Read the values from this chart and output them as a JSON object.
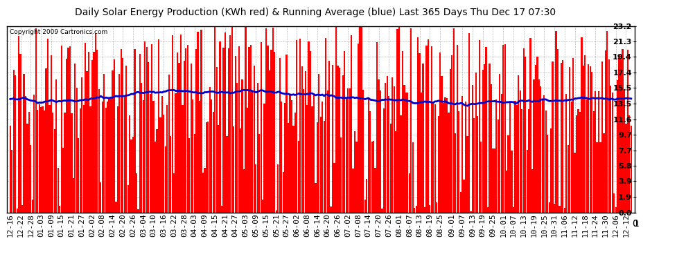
{
  "title": "Daily Solar Energy Production (KWh red) & Running Average (blue) Last 365 Days Thu Dec 17 07:30",
  "copyright": "Copyright 2009 Cartronics.com",
  "bar_color": "#ff0000",
  "avg_color": "#0000cc",
  "background_color": "#ffffff",
  "plot_bg_color": "#ffffff",
  "grid_color": "#aaaaaa",
  "ylim": [
    0.0,
    23.2
  ],
  "yticks": [
    0.0,
    1.9,
    3.9,
    5.8,
    7.7,
    9.7,
    11.6,
    13.5,
    15.5,
    17.4,
    19.4,
    21.3,
    23.2
  ],
  "xlabel_rotation": 90,
  "title_fontsize": 10,
  "tick_fontsize": 8,
  "avg_linewidth": 2.0,
  "num_days": 365,
  "x_tick_labels": [
    "12-16",
    "12-22",
    "12-28",
    "01-03",
    "01-09",
    "01-15",
    "01-21",
    "01-27",
    "02-02",
    "02-08",
    "02-14",
    "02-20",
    "02-26",
    "03-04",
    "03-10",
    "03-16",
    "03-22",
    "03-28",
    "04-03",
    "04-09",
    "04-15",
    "04-21",
    "04-27",
    "05-03",
    "05-09",
    "05-15",
    "05-21",
    "05-27",
    "06-02",
    "06-08",
    "06-14",
    "06-20",
    "06-26",
    "07-02",
    "07-08",
    "07-14",
    "07-20",
    "07-26",
    "08-01",
    "08-07",
    "08-13",
    "08-19",
    "08-25",
    "09-01",
    "09-07",
    "09-13",
    "09-19",
    "09-25",
    "10-01",
    "10-07",
    "10-13",
    "10-19",
    "10-25",
    "10-31",
    "11-06",
    "11-12",
    "11-18",
    "11-24",
    "11-30",
    "12-06",
    "12-12"
  ],
  "x_tick_positions": [
    0,
    6,
    12,
    18,
    24,
    30,
    36,
    42,
    48,
    54,
    60,
    66,
    72,
    78,
    84,
    90,
    96,
    102,
    108,
    114,
    120,
    126,
    132,
    138,
    144,
    150,
    156,
    162,
    168,
    174,
    180,
    186,
    192,
    198,
    204,
    210,
    216,
    222,
    228,
    234,
    240,
    246,
    252,
    259,
    265,
    271,
    277,
    283,
    289,
    295,
    301,
    307,
    313,
    319,
    325,
    331,
    337,
    343,
    349,
    355,
    361
  ]
}
